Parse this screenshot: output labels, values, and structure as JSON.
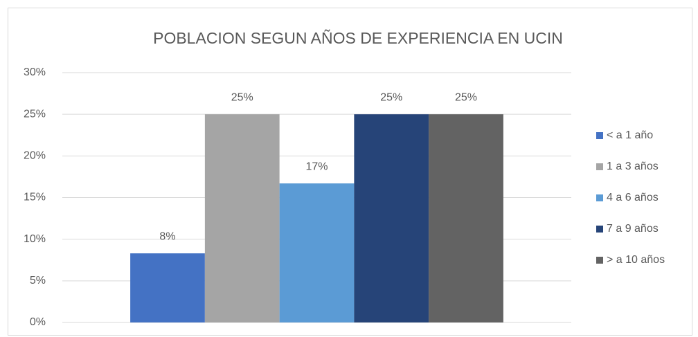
{
  "chart_data": {
    "type": "bar",
    "title": "POBLACION SEGUN AÑOS DE EXPERIENCIA EN UCIN",
    "categories": [
      null
    ],
    "series": [
      {
        "name": "< a  1 año",
        "color": "#4472c4",
        "values": [
          8.3
        ],
        "value_labels": [
          "8%"
        ]
      },
      {
        "name": "1 a 3 años",
        "color": "#a5a5a5",
        "values": [
          25
        ],
        "value_labels": [
          "25%"
        ]
      },
      {
        "name": "4 a 6 años",
        "color": "#5b9bd5",
        "values": [
          16.7
        ],
        "value_labels": [
          "17%"
        ]
      },
      {
        "name": "7 a 9 años",
        "color": "#264478",
        "values": [
          25
        ],
        "value_labels": [
          "25%"
        ]
      },
      {
        "name": "> a 10 años",
        "color": "#636363",
        "values": [
          25
        ],
        "value_labels": [
          "25%"
        ]
      }
    ],
    "ylim": [
      0,
      30
    ],
    "yticks": [
      {
        "value": 0,
        "label": "0%"
      },
      {
        "value": 5,
        "label": "5%"
      },
      {
        "value": 10,
        "label": "10%"
      },
      {
        "value": 15,
        "label": "15%"
      },
      {
        "value": 20,
        "label": "20%"
      },
      {
        "value": 25,
        "label": "25%"
      },
      {
        "value": 30,
        "label": "30%"
      }
    ],
    "grid": true,
    "legend": "right"
  }
}
